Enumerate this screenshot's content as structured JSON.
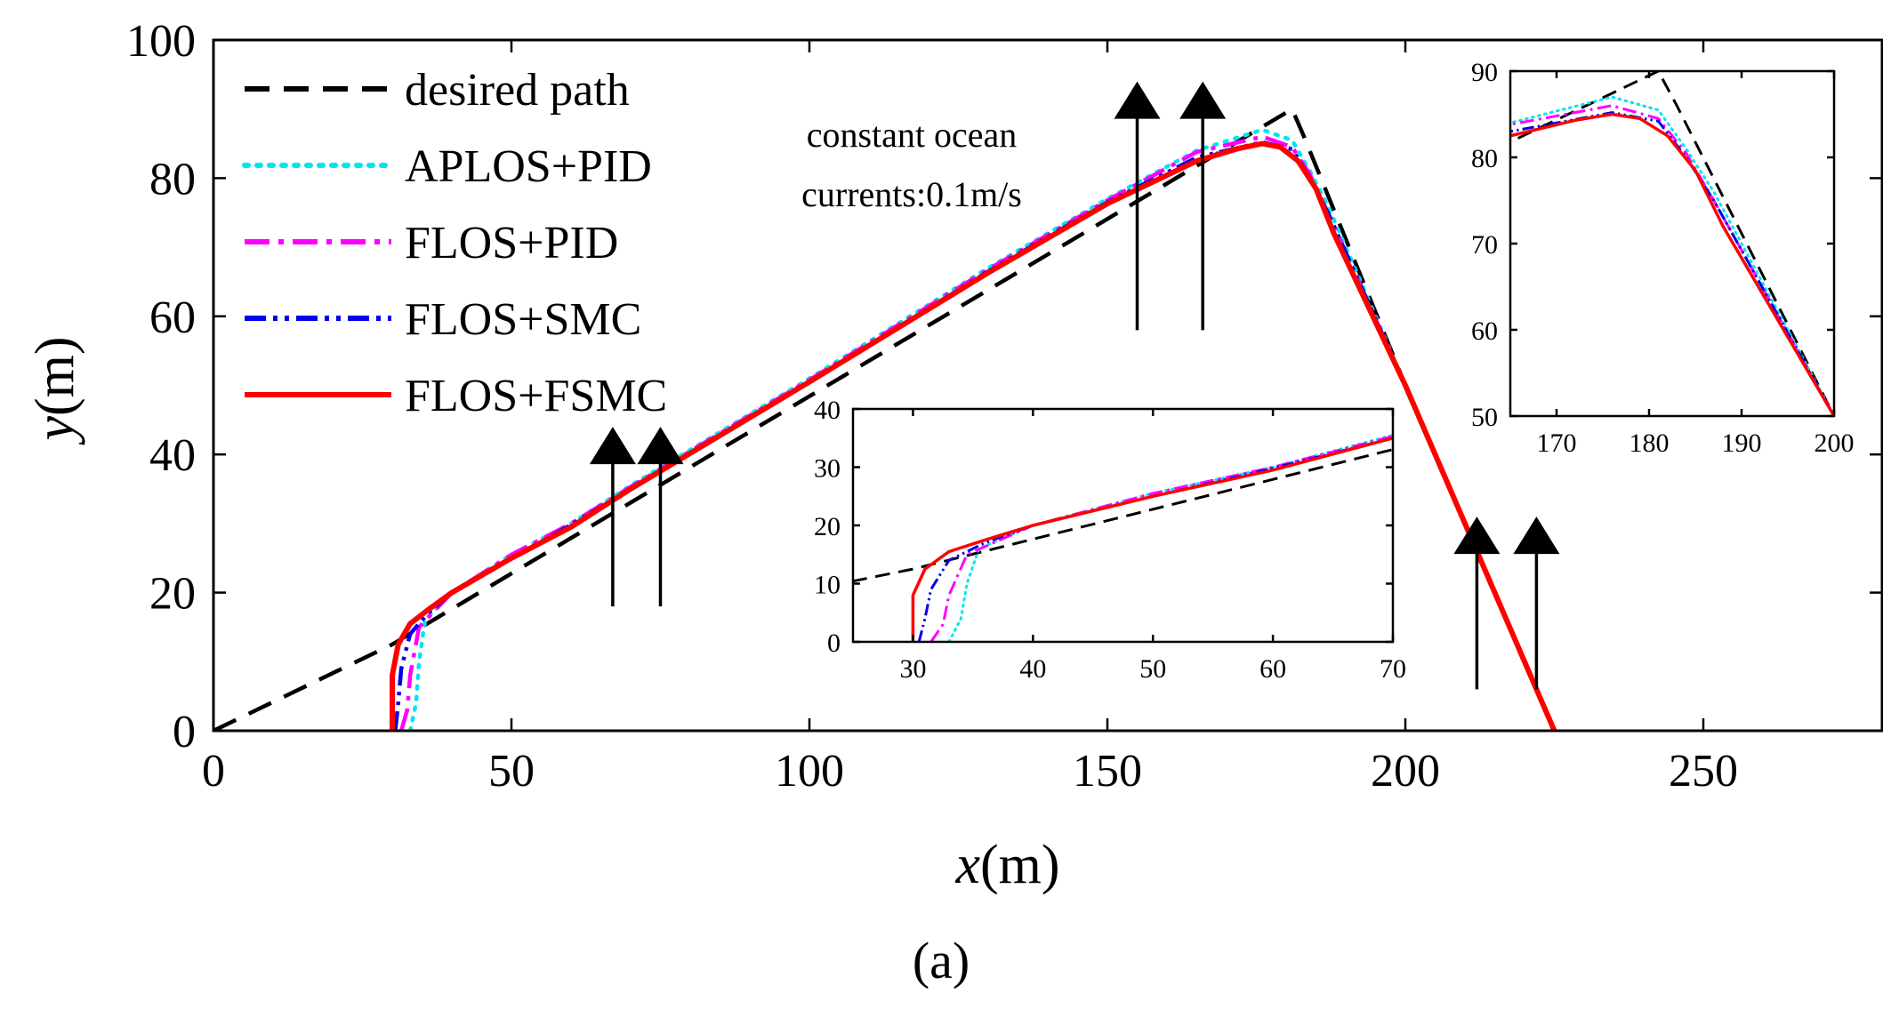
{
  "chart_data": {
    "type": "line",
    "caption": "(a)",
    "main": {
      "xlabel": "x(m)",
      "ylabel": "y(m)",
      "xlim": [
        0,
        280
      ],
      "ylim": [
        0,
        100
      ],
      "xticks": [
        0,
        50,
        100,
        150,
        200,
        250
      ],
      "yticks": [
        0,
        20,
        40,
        60,
        80,
        100
      ],
      "x_label_var": "x",
      "y_label_var": "y",
      "label_unit": "(m)"
    },
    "legend": {
      "position": "top-left",
      "entries": [
        "desired path",
        "APLOS+PID",
        "FLOS+PID",
        "FLOS+SMC",
        "FLOS+FSMC"
      ]
    },
    "annotation": {
      "line1": "constant ocean",
      "line2": "currents:0.1m/s"
    },
    "current_arrows": [
      {
        "x": 67,
        "y_from": 18,
        "y_to": 44
      },
      {
        "x": 75,
        "y_from": 18,
        "y_to": 44
      },
      {
        "x": 155,
        "y_from": 58,
        "y_to": 94
      },
      {
        "x": 166,
        "y_from": 58,
        "y_to": 94
      },
      {
        "x": 212,
        "y_from": 6,
        "y_to": 31
      },
      {
        "x": 222,
        "y_from": 6,
        "y_to": 31
      }
    ],
    "series": [
      {
        "name": "desired path",
        "color": "#000000",
        "dash": "dashed",
        "points": [
          [
            0,
            0
          ],
          [
            30,
            12.5
          ],
          [
            181,
            90
          ],
          [
            183,
            86
          ],
          [
            200,
            50
          ],
          [
            225,
            0
          ]
        ]
      },
      {
        "name": "APLOS+PID",
        "color": "#00e5ee",
        "dash": "dotted",
        "points": [
          [
            33,
            0
          ],
          [
            34,
            4
          ],
          [
            34.5,
            10
          ],
          [
            35.5,
            16
          ],
          [
            40,
            20
          ],
          [
            50,
            25.5
          ],
          [
            60,
            30
          ],
          [
            70,
            35.5
          ],
          [
            100,
            51
          ],
          [
            130,
            67
          ],
          [
            150,
            77
          ],
          [
            165,
            84
          ],
          [
            176,
            87
          ],
          [
            181,
            85.5
          ],
          [
            184,
            81
          ],
          [
            187,
            76
          ],
          [
            200,
            50
          ],
          [
            225,
            0
          ]
        ]
      },
      {
        "name": "FLOS+PID",
        "color": "#ff00ff",
        "dash": "dashdot",
        "points": [
          [
            31.5,
            0
          ],
          [
            32.5,
            3
          ],
          [
            33,
            8
          ],
          [
            34.5,
            15
          ],
          [
            40,
            20
          ],
          [
            50,
            25.5
          ],
          [
            60,
            30
          ],
          [
            70,
            35.3
          ],
          [
            100,
            50.8
          ],
          [
            130,
            66.8
          ],
          [
            150,
            76.8
          ],
          [
            165,
            83.8
          ],
          [
            176,
            86
          ],
          [
            181,
            84.5
          ],
          [
            184,
            80.5
          ],
          [
            187,
            75
          ],
          [
            200,
            50
          ],
          [
            225,
            0
          ]
        ]
      },
      {
        "name": "FLOS+SMC",
        "color": "#0000ee",
        "dash": "dashdotdot",
        "points": [
          [
            30.5,
            0
          ],
          [
            31,
            4
          ],
          [
            31.5,
            9
          ],
          [
            33,
            14
          ],
          [
            36,
            17
          ],
          [
            40,
            20
          ],
          [
            50,
            25
          ],
          [
            60,
            29.8
          ],
          [
            70,
            35
          ],
          [
            100,
            50.5
          ],
          [
            130,
            66.5
          ],
          [
            150,
            76.5
          ],
          [
            165,
            83
          ],
          [
            176,
            85.2
          ],
          [
            181,
            84.2
          ],
          [
            184,
            80
          ],
          [
            187,
            75
          ],
          [
            200,
            50
          ],
          [
            225,
            0
          ]
        ]
      },
      {
        "name": "FLOS+FSMC",
        "color": "#ff0000",
        "dash": "solid",
        "points": [
          [
            30,
            0
          ],
          [
            30,
            8
          ],
          [
            31,
            12.5
          ],
          [
            33,
            15.5
          ],
          [
            36,
            17.5
          ],
          [
            40,
            20
          ],
          [
            50,
            25
          ],
          [
            60,
            29.5
          ],
          [
            70,
            35
          ],
          [
            100,
            50.5
          ],
          [
            130,
            66.3
          ],
          [
            150,
            76.3
          ],
          [
            165,
            82.5
          ],
          [
            172,
            84.3
          ],
          [
            176,
            85
          ],
          [
            179,
            84.5
          ],
          [
            182,
            82.5
          ],
          [
            185,
            78.5
          ],
          [
            188,
            72
          ],
          [
            200,
            50
          ],
          [
            225,
            0
          ]
        ]
      }
    ],
    "insets": [
      {
        "name": "bottom-inset",
        "xlim": [
          25,
          70
        ],
        "ylim": [
          0,
          40
        ],
        "xticks": [
          30,
          40,
          50,
          60,
          70
        ],
        "yticks": [
          0,
          10,
          20,
          30,
          40
        ]
      },
      {
        "name": "top-right-inset",
        "xlim": [
          165,
          200
        ],
        "ylim": [
          50,
          90
        ],
        "xticks": [
          170,
          180,
          190,
          200
        ],
        "yticks": [
          50,
          60,
          70,
          80,
          90
        ]
      }
    ]
  }
}
